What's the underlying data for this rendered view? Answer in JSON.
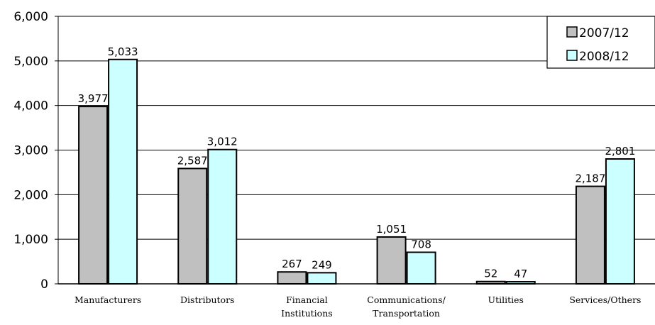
{
  "chart_data": {
    "type": "bar",
    "categories": [
      [
        "Manufacturers"
      ],
      [
        "Distributors"
      ],
      [
        "Financial",
        "Institutions"
      ],
      [
        "Communications/",
        "Transportation"
      ],
      [
        "Utilities"
      ],
      [
        "Services/Others"
      ]
    ],
    "series": [
      {
        "name": "2007/12",
        "color": "#c0c0c0",
        "values": [
          3977,
          2587,
          267,
          1051,
          52,
          2187
        ],
        "labels": [
          "3,977",
          "2,587",
          "267",
          "1,051",
          "52",
          "2,187"
        ]
      },
      {
        "name": "2008/12",
        "color": "#ccffff",
        "values": [
          5033,
          3012,
          249,
          708,
          47,
          2801
        ],
        "labels": [
          "5,033",
          "3,012",
          "249",
          "708",
          "47",
          "2,801"
        ]
      }
    ],
    "title": "",
    "xlabel": "",
    "ylabel": "",
    "ylim": [
      0,
      6000
    ],
    "yticks": [
      {
        "value": 0,
        "label": "0"
      },
      {
        "value": 1000,
        "label": "1,000"
      },
      {
        "value": 2000,
        "label": "2,000"
      },
      {
        "value": 3000,
        "label": "3,000"
      },
      {
        "value": 4000,
        "label": "4,000"
      },
      {
        "value": 5000,
        "label": "5,000"
      },
      {
        "value": 6000,
        "label": "6,000"
      }
    ],
    "grid": true,
    "legend_position": "top-right"
  }
}
